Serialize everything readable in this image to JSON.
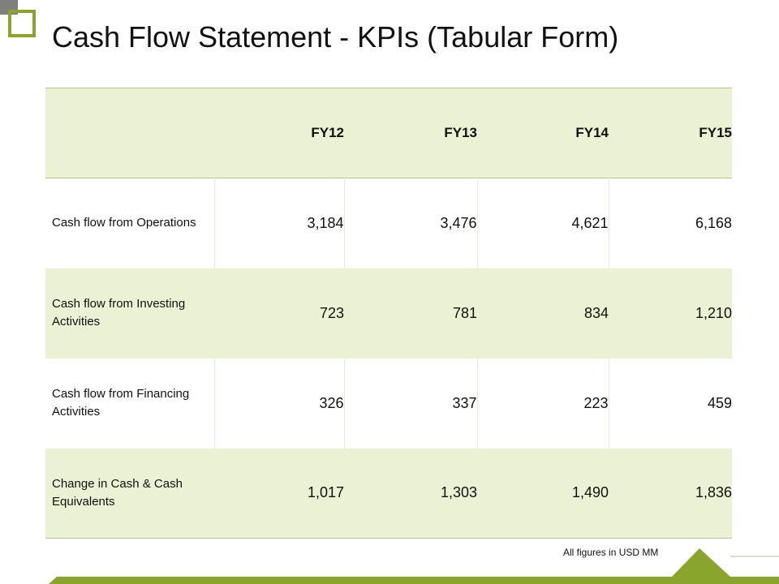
{
  "slide": {
    "title": "Cash Flow Statement - KPIs (Tabular Form)",
    "footnote": "All figures in USD  MM"
  },
  "table": {
    "columns": [
      "",
      "FY12",
      "FY13",
      "FY14",
      "FY15"
    ],
    "rows": [
      {
        "label": "Cash flow from Operations",
        "values": [
          "3,184",
          "3,476",
          "4,621",
          "6,168"
        ]
      },
      {
        "label": "Cash flow from Investing Activities",
        "values": [
          "723",
          "781",
          "834",
          "1,210"
        ]
      },
      {
        "label": "Cash flow from Financing Activities",
        "values": [
          "326",
          "337",
          "223",
          "459"
        ]
      },
      {
        "label": "Change in Cash & Cash Equivalents",
        "values": [
          "1,017",
          "1,303",
          "1,490",
          "1,836"
        ]
      }
    ]
  },
  "colors": {
    "accent_green": "#8aa52c",
    "band_fill": "#eaf2d3",
    "corner_gray": "#7f7f7f"
  }
}
